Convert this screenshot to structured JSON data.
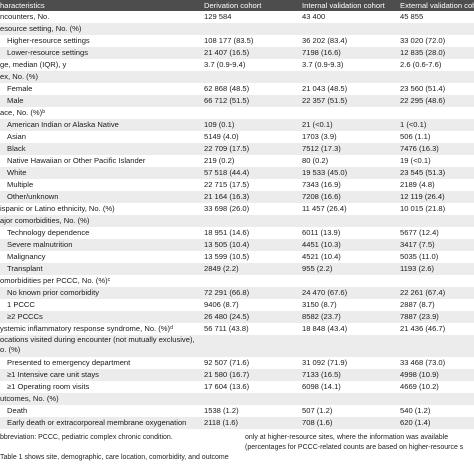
{
  "table": {
    "header": [
      "haracteristics",
      "Derivation cohort",
      "Internal validation cohort",
      "External validation coh"
    ],
    "groups": [
      {
        "label": "ncounters, No.",
        "values": [
          "129 584",
          "43 400",
          "45 855"
        ]
      },
      {
        "label": "esource setting, No. (%)",
        "items": [
          [
            "Higher-resource settings",
            "108 177 (83.5)",
            "36 202 (83.4)",
            "33 020 (72.0)"
          ],
          [
            "Lower-resource settings",
            "21 407 (16.5)",
            "7198 (16.6)",
            "12 835 (28.0)"
          ]
        ]
      },
      {
        "label": "ge, median (IQR), y",
        "values": [
          "3.7 (0.9-9.4)",
          "3.7 (0.9-9.3)",
          "2.6 (0.6-7.6)"
        ]
      },
      {
        "label": "ex, No. (%)",
        "items": [
          [
            "Female",
            "62 868 (48.5)",
            "21 043 (48.5)",
            "23 560 (51.4)"
          ],
          [
            "Male",
            "66 712 (51.5)",
            "22 357 (51.5)",
            "22 295 (48.6)"
          ]
        ]
      },
      {
        "label": "ace, No. (%)ᵇ",
        "items": [
          [
            "American Indian or Alaska Native",
            "109 (0.1)",
            "21 (<0.1)",
            "1 (<0.1)"
          ],
          [
            "Asian",
            "5149 (4.0)",
            "1703 (3.9)",
            "506 (1.1)"
          ],
          [
            "Black",
            "22 709 (17.5)",
            "7512 (17.3)",
            "7476 (16.3)"
          ],
          [
            "Native Hawaiian or Other Pacific Islander",
            "219 (0.2)",
            "80 (0.2)",
            "19 (<0.1)"
          ],
          [
            "White",
            "57 518 (44.4)",
            "19 533 (45.0)",
            "23 545 (51.3)"
          ],
          [
            "Multiple",
            "22 715 (17.5)",
            "7343 (16.9)",
            "2189 (4.8)"
          ],
          [
            "Other/unknown",
            "21 164 (16.3)",
            "7208 (16.6)",
            "12 119 (26.4)"
          ]
        ]
      },
      {
        "label": "ispanic or Latino ethnicity, No. (%)",
        "values": [
          "33 698 (26.0)",
          "11 457 (26.4)",
          "10 015 (21.8)"
        ]
      },
      {
        "label": "ajor comorbidities, No. (%)",
        "items": [
          [
            "Technology dependence",
            "18 951 (14.6)",
            "6011 (13.9)",
            "5677 (12.4)"
          ],
          [
            "Severe malnutrition",
            "13 505 (10.4)",
            "4451 (10.3)",
            "3417 (7.5)"
          ],
          [
            "Malignancy",
            "13 599 (10.5)",
            "4521 (10.4)",
            "5035 (11.0)"
          ],
          [
            "Transplant",
            "2849 (2.2)",
            "955 (2.2)",
            "1193 (2.6)"
          ]
        ]
      },
      {
        "label": "omorbidities per PCCC, No. (%)ᶜ",
        "items": [
          [
            "No known prior comorbidity",
            "72 291 (66.8)",
            "24 470 (67.6)",
            "22 261 (67.4)"
          ],
          [
            "1 PCCC",
            "9406 (8.7)",
            "3150 (8.7)",
            "2887 (8.7)"
          ],
          [
            "≥2 PCCCs",
            "26 480 (24.5)",
            "8582 (23.7)",
            "7887 (23.9)"
          ]
        ]
      },
      {
        "label": "ystemic inflammatory response syndrome, No. (%)ᵈ",
        "values": [
          "56 711 (43.8)",
          "18 848 (43.4)",
          "21 436 (46.7)"
        ]
      },
      {
        "label": "ocations visited during encounter (not mutually exclusive), o. (%)",
        "items": [
          [
            "Presented to emergency department",
            "92 507 (71.6)",
            "31 092 (71.9)",
            "33 468 (73.0)"
          ],
          [
            "≥1 Intensive care unit stays",
            "21 580 (16.7)",
            "7133 (16.5)",
            "4998 (10.9)"
          ],
          [
            "≥1 Operating room visits",
            "17 604 (13.6)",
            "6098 (14.1)",
            "4669 (10.2)"
          ]
        ]
      },
      {
        "label": "utcomes, No. (%)",
        "items": [
          [
            "Death",
            "1538 (1.2)",
            "507 (1.2)",
            "540 (1.2)"
          ],
          [
            "Early death or extracorporeal membrane oxygenation",
            "2118 (1.6)",
            "708 (1.6)",
            "620 (1.4)"
          ]
        ]
      }
    ]
  },
  "footnotes": {
    "left": "bbreviation: PCCC, pediatric complex chronic condition.",
    "right": "only at higher-resource sites, where the information was available (percentages for PCCC-related counts are based on higher-resource s",
    "bottom": "Table 1 shows site, demographic, care location, comorbidity, and outcome"
  }
}
